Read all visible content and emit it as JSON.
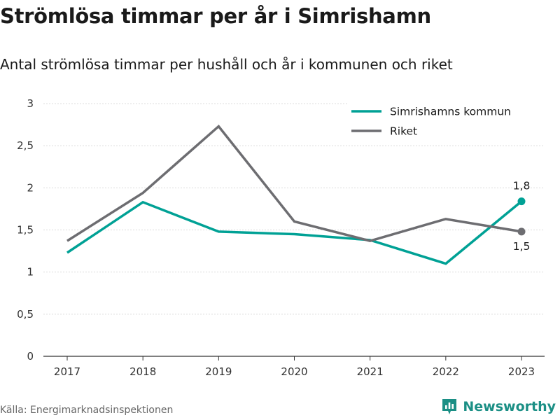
{
  "title": "Strömlösa timmar per år i Simrishamn",
  "subtitle": "Antal strömlösa timmar per hushåll och år i kommunen och riket",
  "source": "Källa: Energimarknadsinspektionen",
  "brand": {
    "name": "Newsworthy",
    "icon": "newsworthy-logo-icon"
  },
  "colors": {
    "kommun": "#00a195",
    "riket": "#6d6d71"
  },
  "chart_data": {
    "type": "line",
    "x": [
      "2017",
      "2018",
      "2019",
      "2020",
      "2021",
      "2022",
      "2023"
    ],
    "yticks": [
      "0",
      "0,5",
      "1",
      "1,5",
      "2",
      "2,5",
      "3"
    ],
    "ylim": [
      0,
      3
    ],
    "grid": true,
    "legend_position": "top-right",
    "series": [
      {
        "name": "Simrishamns kommun",
        "color": "#00a195",
        "values": [
          1.23,
          1.83,
          1.48,
          1.45,
          1.38,
          1.1,
          1.84
        ],
        "end_label": "1,8"
      },
      {
        "name": "Riket",
        "color": "#6d6d71",
        "values": [
          1.37,
          1.94,
          2.73,
          1.6,
          1.37,
          1.63,
          1.48
        ],
        "end_label": "1,5"
      }
    ]
  }
}
